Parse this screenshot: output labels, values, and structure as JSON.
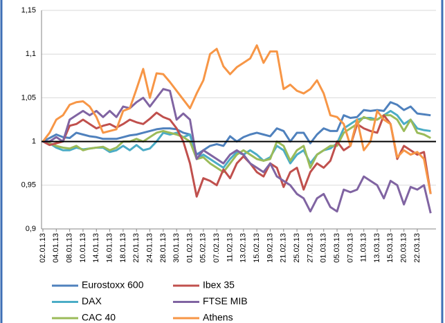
{
  "chart_data": {
    "type": "line",
    "categories": [
      "02.01.13",
      null,
      "04.01.13",
      null,
      "08.01.13",
      null,
      "10.01.13",
      null,
      "14.01.13",
      null,
      "16.01.13",
      null,
      "18.01.13",
      null,
      "22.01.13",
      null,
      "24.01.13",
      null,
      "28.01.13",
      null,
      "30.01.13",
      null,
      "01.02.13",
      null,
      "05.02.13",
      null,
      "07.02.13",
      null,
      "11.02.13",
      null,
      "13.02.13",
      null,
      "15.02.13",
      null,
      "19.02.13",
      null,
      "21.02.13",
      null,
      "25.02.13",
      null,
      "27.02.13",
      null,
      "01.03.13",
      null,
      "05.03.13",
      null,
      "07.03.13",
      null,
      "11.03.13",
      null,
      "13.03.13",
      null,
      "15.03.13",
      null,
      "20.03.13",
      null,
      "22.03.13",
      null,
      null
    ],
    "series": [
      {
        "name": "Eurostoxx 600",
        "color": "#4f81bd",
        "values": [
          1.0,
          1.004,
          1.008,
          1.005,
          1.004,
          1.01,
          1.008,
          1.006,
          1.005,
          1.003,
          1.003,
          1.003,
          1.005,
          1.007,
          1.008,
          1.01,
          1.012,
          1.014,
          1.015,
          1.015,
          1.014,
          1.01,
          1.008,
          0.985,
          0.99,
          0.995,
          0.997,
          0.995,
          1.006,
          1.0,
          1.005,
          1.008,
          1.01,
          1.008,
          1.006,
          1.015,
          1.012,
          1.0,
          1.01,
          1.01,
          0.998,
          1.008,
          1.015,
          1.012,
          1.012,
          1.03,
          1.027,
          1.028,
          1.036,
          1.035,
          1.036,
          1.035,
          1.045,
          1.042,
          1.036,
          1.04,
          1.032,
          1.031,
          1.03
        ]
      },
      {
        "name": "DAX",
        "color": "#4bacc6",
        "values": [
          1.0,
          0.998,
          0.993,
          0.99,
          0.99,
          0.993,
          0.991,
          0.992,
          0.993,
          0.993,
          0.988,
          0.99,
          0.995,
          0.99,
          0.996,
          0.99,
          0.992,
          1.0,
          1.01,
          1.008,
          1.01,
          1.005,
          1.008,
          0.98,
          0.985,
          0.98,
          0.975,
          0.97,
          0.98,
          0.988,
          0.985,
          0.99,
          0.985,
          0.978,
          0.982,
          0.995,
          0.99,
          0.975,
          0.985,
          0.99,
          0.975,
          0.985,
          0.99,
          0.992,
          0.998,
          1.015,
          1.02,
          1.025,
          1.027,
          1.027,
          1.025,
          1.03,
          1.035,
          1.03,
          1.02,
          1.025,
          1.015,
          1.013,
          1.012
        ]
      },
      {
        "name": "CAC 40",
        "color": "#9bbb59",
        "values": [
          1.0,
          0.998,
          0.995,
          0.993,
          0.992,
          0.995,
          0.99,
          0.992,
          0.993,
          0.994,
          0.99,
          0.993,
          1.0,
          1.0,
          1.003,
          1.0,
          1.005,
          1.01,
          1.012,
          1.01,
          1.008,
          1.005,
          1.0,
          0.98,
          0.982,
          0.975,
          0.97,
          0.965,
          0.975,
          0.985,
          0.99,
          0.985,
          0.98,
          0.978,
          0.98,
          1.0,
          0.995,
          0.978,
          0.99,
          0.995,
          0.97,
          0.985,
          0.99,
          0.995,
          0.995,
          1.01,
          1.015,
          1.02,
          1.028,
          1.025,
          1.025,
          1.03,
          1.03,
          1.025,
          1.012,
          1.025,
          1.01,
          1.008,
          1.004
        ]
      },
      {
        "name": "Ibex 35",
        "color": "#c0504d",
        "values": [
          1.0,
          0.996,
          0.998,
          1.0,
          1.018,
          1.02,
          1.025,
          1.02,
          1.015,
          1.018,
          1.02,
          1.016,
          1.02,
          1.025,
          1.022,
          1.02,
          1.026,
          1.033,
          1.028,
          1.025,
          1.015,
          1.0,
          0.975,
          0.937,
          0.958,
          0.955,
          0.95,
          0.968,
          0.958,
          0.975,
          0.983,
          0.975,
          0.965,
          0.96,
          0.975,
          0.97,
          0.948,
          0.965,
          0.97,
          0.945,
          0.965,
          0.975,
          0.97,
          0.978,
          1.0,
          0.99,
          0.995,
          1.02,
          1.015,
          1.012,
          1.01,
          1.03,
          1.02,
          0.98,
          0.995,
          0.99,
          0.985,
          0.988,
          0.94
        ]
      },
      {
        "name": "FTSE MIB",
        "color": "#8064a2",
        "values": [
          1.0,
          1.0,
          1.005,
          1.0,
          1.025,
          1.03,
          1.035,
          1.03,
          1.035,
          1.028,
          1.035,
          1.028,
          1.04,
          1.038,
          1.045,
          1.05,
          1.04,
          1.05,
          1.06,
          1.058,
          1.025,
          1.032,
          1.025,
          0.98,
          0.99,
          0.985,
          0.98,
          0.975,
          0.985,
          0.99,
          0.985,
          0.975,
          0.97,
          0.965,
          0.975,
          0.96,
          0.955,
          0.95,
          0.94,
          0.935,
          0.92,
          0.935,
          0.94,
          0.925,
          0.92,
          0.945,
          0.942,
          0.945,
          0.96,
          0.955,
          0.95,
          0.935,
          0.955,
          0.95,
          0.928,
          0.948,
          0.945,
          0.95,
          0.918
        ]
      },
      {
        "name": "Athens",
        "color": "#f79646",
        "values": [
          1.0,
          1.01,
          1.025,
          1.03,
          1.042,
          1.045,
          1.046,
          1.04,
          1.028,
          1.01,
          1.012,
          1.014,
          1.035,
          1.038,
          1.06,
          1.083,
          1.05,
          1.078,
          1.077,
          1.068,
          1.058,
          1.048,
          1.038,
          1.055,
          1.07,
          1.1,
          1.106,
          1.086,
          1.077,
          1.085,
          1.09,
          1.095,
          1.11,
          1.09,
          1.103,
          1.103,
          1.06,
          1.065,
          1.058,
          1.055,
          1.06,
          1.07,
          1.055,
          1.03,
          1.028,
          1.02,
          0.995,
          1.025,
          0.99,
          1.0,
          1.035,
          1.025,
          1.02,
          0.982,
          0.99,
          0.985,
          0.988,
          0.98,
          0.94
        ]
      }
    ],
    "ylim": [
      0.9,
      1.15
    ],
    "yticks": [
      {
        "value": 0.9,
        "label": "0,9"
      },
      {
        "value": 0.95,
        "label": "0,95"
      },
      1,
      {
        "value": 1.05,
        "label": "1,05"
      },
      {
        "value": 1.1,
        "label": "1,1"
      },
      {
        "value": 1.15,
        "label": "1,15"
      }
    ],
    "reference_line": 1,
    "grid": true
  }
}
